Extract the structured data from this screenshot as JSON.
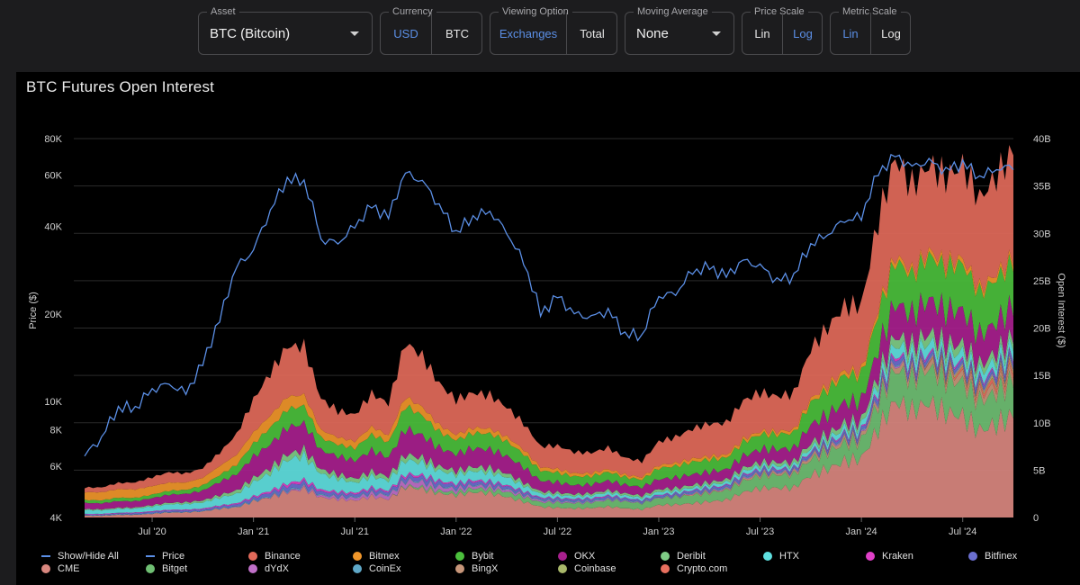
{
  "controls": {
    "asset": {
      "legend": "Asset",
      "value": "BTC (Bitcoin)"
    },
    "currency": {
      "legend": "Currency",
      "options": [
        "USD",
        "BTC"
      ],
      "selected": "USD"
    },
    "viewing": {
      "legend": "Viewing Option",
      "options": [
        "Exchanges",
        "Total"
      ],
      "selected": "Exchanges"
    },
    "moving_average": {
      "legend": "Moving Average",
      "value": "None"
    },
    "price_scale": {
      "legend": "Price Scale",
      "options": [
        "Lin",
        "Log"
      ],
      "selected": "Log"
    },
    "metric_scale": {
      "legend": "Metric Scale",
      "options": [
        "Lin",
        "Log"
      ],
      "selected": "Lin"
    }
  },
  "chart_data": {
    "type": "area",
    "title": "BTC Futures Open Interest",
    "ylabel_left": "Price ($)",
    "ylabel_right": "Open Interest ($)",
    "left_axis": {
      "scale": "log",
      "range": [
        4000,
        80000
      ],
      "ticks": [
        4000,
        6000,
        8000,
        10000,
        20000,
        40000,
        60000,
        80000
      ],
      "tick_labels": [
        "4K",
        "6K",
        "8K",
        "10K",
        "20K",
        "40K",
        "60K",
        "80K"
      ]
    },
    "right_axis": {
      "scale": "linear",
      "range": [
        0,
        40
      ],
      "unit": "B",
      "ticks": [
        0,
        5,
        10,
        15,
        20,
        25,
        30,
        35,
        40
      ],
      "tick_labels": [
        "0",
        "5B",
        "10B",
        "15B",
        "20B",
        "25B",
        "30B",
        "35B",
        "40B"
      ]
    },
    "x_axis": {
      "range": [
        "2020-03",
        "2024-10"
      ],
      "tick_labels": [
        "Jul '20",
        "Jan '21",
        "Jul '21",
        "Jan '22",
        "Jul '22",
        "Jan '23",
        "Jul '23",
        "Jan '24",
        "Jul '24"
      ],
      "tick_months": [
        4,
        10,
        16,
        22,
        28,
        34,
        40,
        46,
        52
      ]
    },
    "months": [
      "2020-03",
      "2020-04",
      "2020-05",
      "2020-06",
      "2020-07",
      "2020-08",
      "2020-09",
      "2020-10",
      "2020-11",
      "2020-12",
      "2021-01",
      "2021-02",
      "2021-03",
      "2021-04",
      "2021-05",
      "2021-06",
      "2021-07",
      "2021-08",
      "2021-09",
      "2021-10",
      "2021-11",
      "2021-12",
      "2022-01",
      "2022-02",
      "2022-03",
      "2022-04",
      "2022-05",
      "2022-06",
      "2022-07",
      "2022-08",
      "2022-09",
      "2022-10",
      "2022-11",
      "2022-12",
      "2023-01",
      "2023-02",
      "2023-03",
      "2023-04",
      "2023-05",
      "2023-06",
      "2023-07",
      "2023-08",
      "2023-09",
      "2023-10",
      "2023-11",
      "2023-12",
      "2024-01",
      "2024-02",
      "2024-03",
      "2024-04",
      "2024-05",
      "2024-06",
      "2024-07",
      "2024-08",
      "2024-09",
      "2024-10"
    ],
    "price": [
      6500,
      7500,
      9500,
      9500,
      11000,
      11500,
      10700,
      13500,
      19000,
      29000,
      33000,
      45000,
      58000,
      57000,
      36000,
      35000,
      40000,
      47000,
      43000,
      61000,
      57000,
      47000,
      38000,
      43000,
      45000,
      38000,
      30000,
      20000,
      23000,
      20000,
      19500,
      20500,
      17000,
      16800,
      23000,
      23500,
      28000,
      29000,
      27000,
      30500,
      29200,
      26000,
      27000,
      34500,
      37500,
      42000,
      43000,
      61000,
      70000,
      64000,
      67000,
      62000,
      66000,
      59000,
      63000,
      64000
    ],
    "series": [
      {
        "name": "CME",
        "color": "#d9877f",
        "values": [
          0.2,
          0.2,
          0.3,
          0.3,
          0.4,
          0.5,
          0.5,
          0.6,
          0.9,
          1.1,
          1.8,
          2.3,
          2.8,
          3.0,
          2.0,
          1.8,
          1.7,
          2.2,
          2.0,
          3.5,
          3.2,
          2.6,
          2.3,
          2.5,
          2.4,
          2.1,
          1.7,
          1.2,
          1.1,
          1.0,
          1.0,
          1.1,
          0.9,
          0.8,
          1.3,
          1.4,
          1.6,
          1.8,
          1.9,
          2.6,
          2.9,
          2.9,
          3.0,
          4.5,
          5.4,
          6.4,
          6.6,
          9.5,
          11.8,
          10.5,
          11.4,
          10.8,
          11.0,
          9.8,
          10.6,
          11.2
        ]
      },
      {
        "name": "Bitget",
        "color": "#6fbf73",
        "values": [
          0,
          0,
          0,
          0,
          0,
          0,
          0,
          0,
          0,
          0,
          0,
          0,
          0,
          0,
          0,
          0,
          0,
          0,
          0,
          0.1,
          0.2,
          0.3,
          0.3,
          0.4,
          0.4,
          0.5,
          0.5,
          0.5,
          0.6,
          0.6,
          0.6,
          0.7,
          0.7,
          0.6,
          0.7,
          0.8,
          0.9,
          1.0,
          1.1,
          1.2,
          1.3,
          1.3,
          1.3,
          1.6,
          1.8,
          2.0,
          2.0,
          2.9,
          3.4,
          3.2,
          3.4,
          3.3,
          3.5,
          3.2,
          3.6,
          4.0
        ]
      },
      {
        "name": "BingX",
        "color": "#c7967a",
        "values": [
          0,
          0,
          0,
          0,
          0,
          0,
          0,
          0,
          0,
          0,
          0,
          0,
          0,
          0,
          0,
          0,
          0,
          0,
          0,
          0,
          0,
          0,
          0,
          0,
          0,
          0,
          0,
          0,
          0,
          0,
          0,
          0,
          0,
          0,
          0,
          0,
          0.1,
          0.1,
          0.1,
          0.2,
          0.2,
          0.2,
          0.2,
          0.3,
          0.3,
          0.4,
          0.4,
          0.5,
          0.6,
          0.6,
          0.6,
          0.6,
          0.7,
          0.7,
          0.8,
          0.9
        ]
      },
      {
        "name": "Crypto.com",
        "color": "#e8705f",
        "values": [
          0,
          0,
          0,
          0,
          0,
          0,
          0,
          0,
          0,
          0,
          0,
          0,
          0,
          0,
          0,
          0,
          0,
          0,
          0,
          0,
          0,
          0,
          0,
          0,
          0,
          0,
          0,
          0,
          0,
          0,
          0,
          0,
          0,
          0,
          0,
          0,
          0,
          0,
          0,
          0,
          0,
          0,
          0,
          0,
          0,
          0,
          0,
          0,
          0,
          0,
          0.1,
          0.2,
          0.3,
          0.4,
          0.5,
          0.6
        ]
      },
      {
        "name": "Coinbase",
        "color": "#a9b86a",
        "values": [
          0,
          0,
          0,
          0,
          0,
          0,
          0,
          0,
          0,
          0,
          0,
          0,
          0,
          0,
          0,
          0,
          0,
          0,
          0,
          0,
          0,
          0,
          0,
          0,
          0,
          0,
          0,
          0,
          0,
          0,
          0,
          0,
          0,
          0,
          0,
          0,
          0,
          0,
          0,
          0,
          0,
          0,
          0,
          0,
          0,
          0,
          0,
          0,
          0,
          0,
          0.1,
          0.2,
          0.2,
          0.2,
          0.3,
          0.3
        ]
      },
      {
        "name": "dYdX",
        "color": "#c070c8",
        "values": [
          0,
          0,
          0,
          0,
          0,
          0,
          0,
          0,
          0,
          0,
          0,
          0.05,
          0.1,
          0.15,
          0.2,
          0.25,
          0.3,
          0.35,
          0.4,
          0.5,
          0.5,
          0.4,
          0.35,
          0.3,
          0.3,
          0.25,
          0.2,
          0.15,
          0.12,
          0.1,
          0.1,
          0.1,
          0.08,
          0.07,
          0.07,
          0.07,
          0.08,
          0.08,
          0.08,
          0.1,
          0.1,
          0.1,
          0.1,
          0.1,
          0.12,
          0.12,
          0.12,
          0.15,
          0.18,
          0.16,
          0.16,
          0.15,
          0.15,
          0.14,
          0.14,
          0.15
        ]
      },
      {
        "name": "CoinEx",
        "color": "#5fa8c8",
        "values": [
          0.05,
          0.05,
          0.05,
          0.05,
          0.05,
          0.06,
          0.06,
          0.06,
          0.07,
          0.08,
          0.1,
          0.1,
          0.12,
          0.12,
          0.1,
          0.1,
          0.1,
          0.1,
          0.1,
          0.12,
          0.12,
          0.1,
          0.1,
          0.1,
          0.1,
          0.1,
          0.08,
          0.08,
          0.08,
          0.08,
          0.08,
          0.08,
          0.07,
          0.07,
          0.07,
          0.07,
          0.08,
          0.08,
          0.08,
          0.08,
          0.08,
          0.08,
          0.08,
          0.1,
          0.1,
          0.1,
          0.1,
          0.12,
          0.14,
          0.13,
          0.13,
          0.13,
          0.13,
          0.12,
          0.12,
          0.13
        ]
      },
      {
        "name": "Bitfinex",
        "color": "#6b6fd0",
        "values": [
          0.1,
          0.1,
          0.12,
          0.12,
          0.14,
          0.15,
          0.15,
          0.16,
          0.2,
          0.25,
          0.3,
          0.35,
          0.4,
          0.4,
          0.3,
          0.3,
          0.3,
          0.35,
          0.3,
          0.4,
          0.4,
          0.35,
          0.3,
          0.32,
          0.3,
          0.28,
          0.25,
          0.2,
          0.2,
          0.18,
          0.18,
          0.2,
          0.16,
          0.15,
          0.18,
          0.18,
          0.2,
          0.2,
          0.2,
          0.22,
          0.22,
          0.2,
          0.2,
          0.25,
          0.28,
          0.3,
          0.3,
          0.4,
          0.45,
          0.42,
          0.42,
          0.4,
          0.42,
          0.38,
          0.4,
          0.42
        ]
      },
      {
        "name": "Kraken",
        "color": "#e040c8",
        "values": [
          0.05,
          0.05,
          0.06,
          0.06,
          0.07,
          0.08,
          0.08,
          0.09,
          0.1,
          0.12,
          0.15,
          0.2,
          0.25,
          0.25,
          0.18,
          0.16,
          0.15,
          0.18,
          0.16,
          0.22,
          0.2,
          0.16,
          0.14,
          0.15,
          0.14,
          0.13,
          0.1,
          0.08,
          0.08,
          0.08,
          0.08,
          0.08,
          0.06,
          0.05,
          0.06,
          0.06,
          0.07,
          0.07,
          0.07,
          0.08,
          0.08,
          0.07,
          0.07,
          0.09,
          0.1,
          0.12,
          0.12,
          0.18,
          0.22,
          0.2,
          0.2,
          0.19,
          0.2,
          0.18,
          0.19,
          0.2
        ]
      },
      {
        "name": "HTX",
        "color": "#5fe0e0",
        "values": [
          0.4,
          0.4,
          0.45,
          0.45,
          0.5,
          0.55,
          0.55,
          0.6,
          0.8,
          1.0,
          1.6,
          2.0,
          2.6,
          2.5,
          1.6,
          1.3,
          1.0,
          1.2,
          1.1,
          1.6,
          1.4,
          1.1,
          0.9,
          0.9,
          0.9,
          0.8,
          0.6,
          0.4,
          0.35,
          0.3,
          0.3,
          0.3,
          0.25,
          0.25,
          0.3,
          0.3,
          0.3,
          0.3,
          0.3,
          0.35,
          0.35,
          0.32,
          0.32,
          0.4,
          0.5,
          0.6,
          0.6,
          0.8,
          1.0,
          1.0,
          1.0,
          0.9,
          1.0,
          0.9,
          1.0,
          1.1
        ]
      },
      {
        "name": "Deribit",
        "color": "#7fcc86",
        "values": [
          0.1,
          0.1,
          0.12,
          0.12,
          0.15,
          0.17,
          0.17,
          0.2,
          0.25,
          0.35,
          0.45,
          0.55,
          0.65,
          0.65,
          0.45,
          0.4,
          0.4,
          0.45,
          0.42,
          0.6,
          0.55,
          0.45,
          0.4,
          0.42,
          0.42,
          0.38,
          0.32,
          0.25,
          0.25,
          0.22,
          0.22,
          0.24,
          0.2,
          0.2,
          0.25,
          0.26,
          0.28,
          0.3,
          0.3,
          0.35,
          0.35,
          0.33,
          0.33,
          0.45,
          0.5,
          0.55,
          0.55,
          0.8,
          0.95,
          0.9,
          0.92,
          0.88,
          0.9,
          0.82,
          0.88,
          0.92
        ]
      },
      {
        "name": "OKX",
        "color": "#a8208e",
        "values": [
          0.6,
          0.6,
          0.7,
          0.7,
          0.8,
          0.9,
          0.9,
          1.0,
          1.3,
          1.6,
          2.2,
          2.6,
          3.0,
          3.0,
          2.1,
          1.9,
          1.8,
          2.1,
          1.9,
          2.7,
          2.5,
          2.1,
          1.9,
          2.0,
          1.9,
          1.7,
          1.5,
          1.1,
          1.1,
          1.0,
          1.0,
          1.05,
          0.9,
          0.85,
          1.0,
          1.05,
          1.1,
          1.15,
          1.15,
          1.35,
          1.4,
          1.35,
          1.35,
          1.8,
          2.0,
          2.2,
          2.2,
          3.0,
          3.6,
          3.3,
          3.4,
          3.3,
          3.4,
          3.1,
          3.3,
          3.5
        ]
      },
      {
        "name": "Bybit",
        "color": "#4bbf3c",
        "values": [
          0.3,
          0.3,
          0.35,
          0.35,
          0.4,
          0.45,
          0.45,
          0.55,
          0.7,
          0.95,
          1.3,
          1.7,
          2.0,
          2.0,
          1.4,
          1.3,
          1.3,
          1.6,
          1.5,
          2.3,
          2.1,
          1.8,
          1.6,
          1.7,
          1.7,
          1.5,
          1.3,
          1.0,
          1.0,
          0.95,
          0.95,
          1.0,
          0.85,
          0.8,
          1.1,
          1.15,
          1.25,
          1.3,
          1.3,
          1.6,
          1.7,
          1.6,
          1.6,
          2.2,
          2.5,
          2.8,
          2.8,
          4.0,
          4.8,
          4.4,
          4.6,
          4.4,
          4.6,
          4.2,
          4.5,
          4.8
        ]
      },
      {
        "name": "Bitmex",
        "color": "#f0962a",
        "values": [
          0.8,
          0.8,
          0.85,
          0.85,
          0.9,
          0.9,
          0.85,
          0.85,
          0.95,
          1.0,
          1.1,
          1.2,
          1.3,
          1.2,
          0.9,
          0.8,
          0.75,
          0.8,
          0.7,
          0.9,
          0.85,
          0.7,
          0.6,
          0.6,
          0.55,
          0.5,
          0.45,
          0.35,
          0.35,
          0.32,
          0.32,
          0.32,
          0.28,
          0.26,
          0.3,
          0.3,
          0.32,
          0.32,
          0.3,
          0.34,
          0.34,
          0.32,
          0.32,
          0.38,
          0.4,
          0.42,
          0.42,
          0.5,
          0.55,
          0.5,
          0.52,
          0.5,
          0.52,
          0.48,
          0.5,
          0.52
        ]
      },
      {
        "name": "Binance",
        "color": "#e26a5a",
        "values": [
          0.5,
          0.5,
          0.6,
          0.7,
          0.9,
          1.1,
          1.0,
          1.1,
          1.5,
          2.2,
          3.3,
          4.2,
          5.0,
          5.0,
          3.4,
          3.0,
          3.0,
          3.6,
          3.3,
          5.4,
          5.0,
          4.2,
          3.7,
          3.9,
          3.8,
          3.3,
          2.8,
          2.1,
          2.3,
          2.1,
          2.1,
          2.3,
          1.9,
          1.8,
          2.6,
          2.7,
          3.0,
          3.2,
          3.2,
          4.0,
          4.3,
          4.0,
          4.1,
          5.4,
          5.9,
          6.4,
          6.5,
          9.0,
          10.5,
          9.5,
          9.8,
          9.4,
          9.8,
          9.0,
          9.6,
          10.6
        ]
      }
    ],
    "price_series": {
      "name": "Price",
      "color": "#5b8fe6"
    },
    "legend_labels": [
      "Show/Hide All",
      "Price",
      "Binance",
      "Bitmex",
      "Bybit",
      "OKX",
      "Deribit",
      "HTX",
      "Kraken",
      "Bitfinex",
      "CME",
      "Bitget",
      "dYdX",
      "CoinEx",
      "BingX",
      "Coinbase",
      "Crypto.com"
    ],
    "legend": "bottom"
  }
}
